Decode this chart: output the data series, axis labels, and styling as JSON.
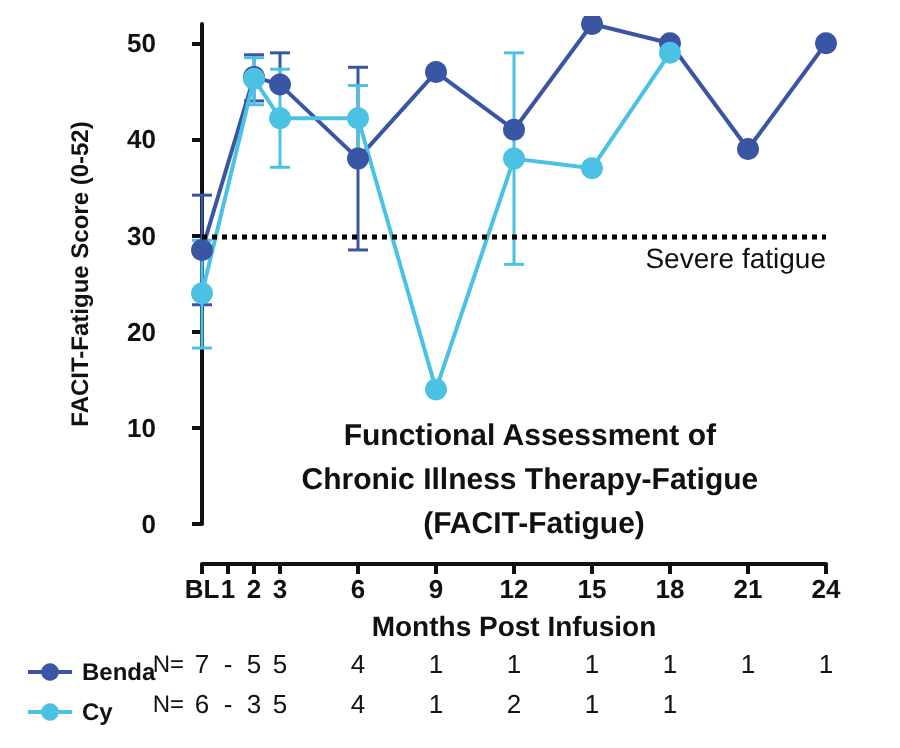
{
  "chart_data": {
    "type": "line",
    "title": "Functional Assessment of Chronic Illness Therapy-Fatigue (FACIT-Fatigue)",
    "xlabel": "Months Post Infusion",
    "ylabel": "FACIT-Fatigue Score (0-52)",
    "xlim": [
      0,
      24
    ],
    "xticks": [
      {
        "value": 0,
        "label": "BL"
      },
      1,
      2,
      3,
      6,
      9,
      12,
      15,
      18,
      21,
      24
    ],
    "ylim": [
      0,
      52
    ],
    "yticks": [
      0,
      10,
      20,
      30,
      40,
      50
    ],
    "series": [
      {
        "name": "Benda",
        "color": "#3b55a5",
        "x": [
          0,
          2,
          3,
          6,
          9,
          12,
          15,
          18,
          21,
          24
        ],
        "values": [
          28.5,
          46.5,
          45.7,
          38,
          47,
          41,
          52,
          50,
          39,
          50
        ],
        "errors": [
          [
            22.8,
            34.2
          ],
          [
            44,
            48.8
          ],
          [
            45.7,
            49
          ],
          [
            28.5,
            47.5
          ],
          null,
          null,
          null,
          null,
          null,
          null
        ]
      },
      {
        "name": "Cy",
        "color": "#4bc1e4",
        "x": [
          0,
          2,
          3,
          6,
          9,
          12,
          15,
          18
        ],
        "values": [
          24,
          46.3,
          42.2,
          42.2,
          14,
          38,
          37,
          49
        ],
        "errors": [
          [
            18.3,
            29.5
          ],
          [
            43.6,
            48.5
          ],
          [
            37.1,
            47.3
          ],
          [
            38.8,
            45.6
          ],
          null,
          [
            27,
            49
          ],
          null,
          null
        ]
      }
    ],
    "ref_lines": [
      {
        "axis": "y",
        "value": 30,
        "label": "Severe fatigue",
        "color": "#000000",
        "line_style": "dotted"
      }
    ],
    "annotations": [
      "N= 7 - 5 5 4 1 1 1 1 1 1",
      "N= 6 - 3 5 4 1 2 1 1"
    ],
    "marker": "circle",
    "grid": false,
    "legend": "bottom"
  }
}
